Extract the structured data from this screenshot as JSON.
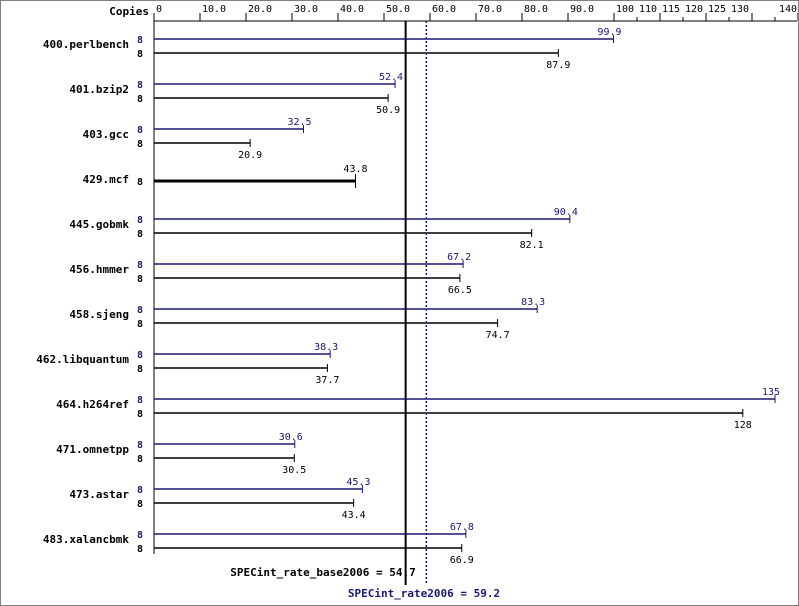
{
  "chart_data": {
    "type": "bar",
    "orientation": "horizontal",
    "copies_label": "Copies",
    "x_ticks": [
      "0",
      "10.0",
      "20.0",
      "30.0",
      "40.0",
      "50.0",
      "60.0",
      "70.0",
      "80.0",
      "90.0",
      "100",
      "110",
      "115",
      "120",
      "125",
      "130",
      "140"
    ],
    "xlim": [
      0,
      140
    ],
    "benchmarks": [
      {
        "name": "400.perlbench",
        "peak_copies": "8",
        "peak": 99.9,
        "peak_label": "99.9",
        "base_copies": "8",
        "base": 87.9,
        "base_label": "87.9"
      },
      {
        "name": "401.bzip2",
        "peak_copies": "8",
        "peak": 52.4,
        "peak_label": "52.4",
        "base_copies": "8",
        "base": 50.9,
        "base_label": "50.9"
      },
      {
        "name": "403.gcc",
        "peak_copies": "8",
        "peak": 32.5,
        "peak_label": "32.5",
        "base_copies": "8",
        "base": 20.9,
        "base_label": "20.9"
      },
      {
        "name": "429.mcf",
        "peak_copies": "",
        "peak": null,
        "peak_label": "",
        "base_copies": "8",
        "base": 43.8,
        "base_label": "43.8",
        "single": true
      },
      {
        "name": "445.gobmk",
        "peak_copies": "8",
        "peak": 90.4,
        "peak_label": "90.4",
        "base_copies": "8",
        "base": 82.1,
        "base_label": "82.1"
      },
      {
        "name": "456.hmmer",
        "peak_copies": "8",
        "peak": 67.2,
        "peak_label": "67.2",
        "base_copies": "8",
        "base": 66.5,
        "base_label": "66.5"
      },
      {
        "name": "458.sjeng",
        "peak_copies": "8",
        "peak": 83.3,
        "peak_label": "83.3",
        "base_copies": "8",
        "base": 74.7,
        "base_label": "74.7"
      },
      {
        "name": "462.libquantum",
        "peak_copies": "8",
        "peak": 38.3,
        "peak_label": "38.3",
        "base_copies": "8",
        "base": 37.7,
        "base_label": "37.7"
      },
      {
        "name": "464.h264ref",
        "peak_copies": "8",
        "peak": 135,
        "peak_label": "135",
        "base_copies": "8",
        "base": 128,
        "base_label": "128"
      },
      {
        "name": "471.omnetpp",
        "peak_copies": "8",
        "peak": 30.6,
        "peak_label": "30.6",
        "base_copies": "8",
        "base": 30.5,
        "base_label": "30.5"
      },
      {
        "name": "473.astar",
        "peak_copies": "8",
        "peak": 45.3,
        "peak_label": "45.3",
        "base_copies": "8",
        "base": 43.4,
        "base_label": "43.4"
      },
      {
        "name": "483.xalancbmk",
        "peak_copies": "8",
        "peak": 67.8,
        "peak_label": "67.8",
        "base_copies": "8",
        "base": 66.9,
        "base_label": "66.9"
      }
    ],
    "base_reference": {
      "label": "SPECint_rate_base2006 = 54.7",
      "value": 54.7
    },
    "peak_reference": {
      "label": "SPECint_rate2006 = 59.2",
      "value": 59.2
    },
    "colors": {
      "base": "#000000",
      "peak": "#191970",
      "border": "#808080"
    }
  }
}
